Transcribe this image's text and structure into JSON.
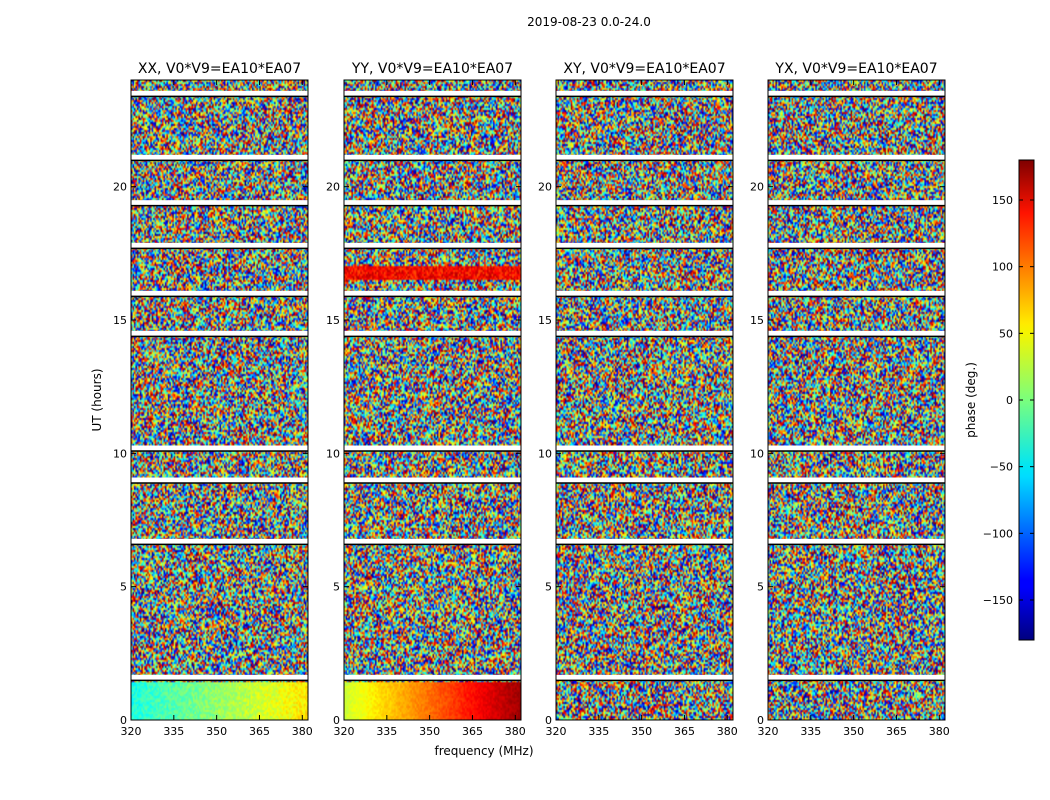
{
  "figure": {
    "suptitle": "2019-08-23 0.0-24.0",
    "xlabel": "frequency (MHz)",
    "ylabel": "UT (hours)"
  },
  "chart_data": {
    "type": "heatmap",
    "quantity": "phase",
    "x_range": [
      320,
      382
    ],
    "x_ticks": [
      320,
      335,
      350,
      365,
      380
    ],
    "y_range": [
      0,
      24
    ],
    "y_ticks": [
      0,
      5,
      10,
      15,
      20
    ],
    "colormap": "jet",
    "colorbar": {
      "label": "phase (deg.)",
      "range": [
        -180,
        180
      ],
      "ticks": [
        -150,
        -100,
        -50,
        0,
        50,
        100,
        150
      ],
      "tick_labels": [
        "−150",
        "−100",
        "−50",
        "0",
        "50",
        "100",
        "150"
      ],
      "placement": "right"
    },
    "panels": [
      {
        "title": "XX, V0*V9=EA10*EA07"
      },
      {
        "title": "YY, V0*V9=EA10*EA07"
      },
      {
        "title": "XY, V0*V9=EA10*EA07"
      },
      {
        "title": "YX, V0*V9=EA10*EA07"
      }
    ],
    "flagged_ut_hours": [
      1.6,
      6.7,
      9.0,
      10.2,
      14.5,
      16.0,
      17.8,
      19.4,
      21.1,
      23.5
    ]
  }
}
